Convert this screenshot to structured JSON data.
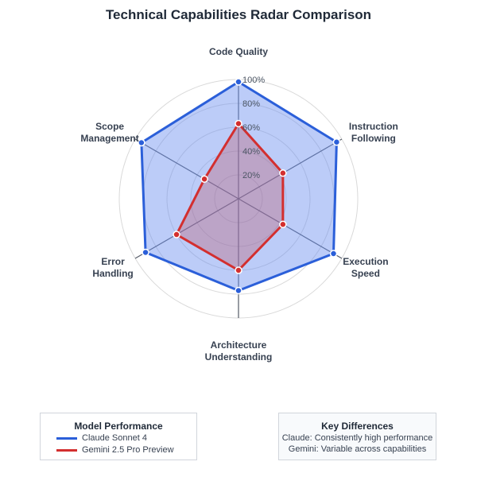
{
  "chart_data": {
    "type": "radar",
    "title": "Technical Capabilities Radar Comparison",
    "axes": [
      [
        "Code Quality"
      ],
      [
        "Instruction",
        "Following"
      ],
      [
        "Execution",
        "Speed"
      ],
      [
        "Architecture",
        "Understanding"
      ],
      [
        "Error",
        "Handling"
      ],
      [
        "Scope",
        "Management"
      ]
    ],
    "r_ticks": [
      "20%",
      "40%",
      "60%",
      "80%",
      "100%"
    ],
    "r_max": 100,
    "series": [
      {
        "name": "Claude Sonnet 4",
        "color": "#2b5fd9",
        "fill": "rgba(106,143,240,0.45)",
        "values": [
          98,
          95,
          92,
          77,
          90,
          94
        ]
      },
      {
        "name": "Gemini 2.5 Pro Preview",
        "color": "#d32f2f",
        "fill": "rgba(190,90,110,0.35)",
        "values": [
          63,
          43,
          43,
          60,
          60,
          33
        ]
      }
    ]
  },
  "legend": {
    "title": "Model Performance",
    "items": [
      {
        "label": "Claude Sonnet 4",
        "color": "#2b5fd9"
      },
      {
        "label": "Gemini 2.5 Pro Preview",
        "color": "#d32f2f"
      }
    ]
  },
  "key_differences": {
    "title": "Key Differences",
    "lines": [
      "Claude: Consistently high performance",
      "Gemini: Variable across capabilities"
    ]
  }
}
